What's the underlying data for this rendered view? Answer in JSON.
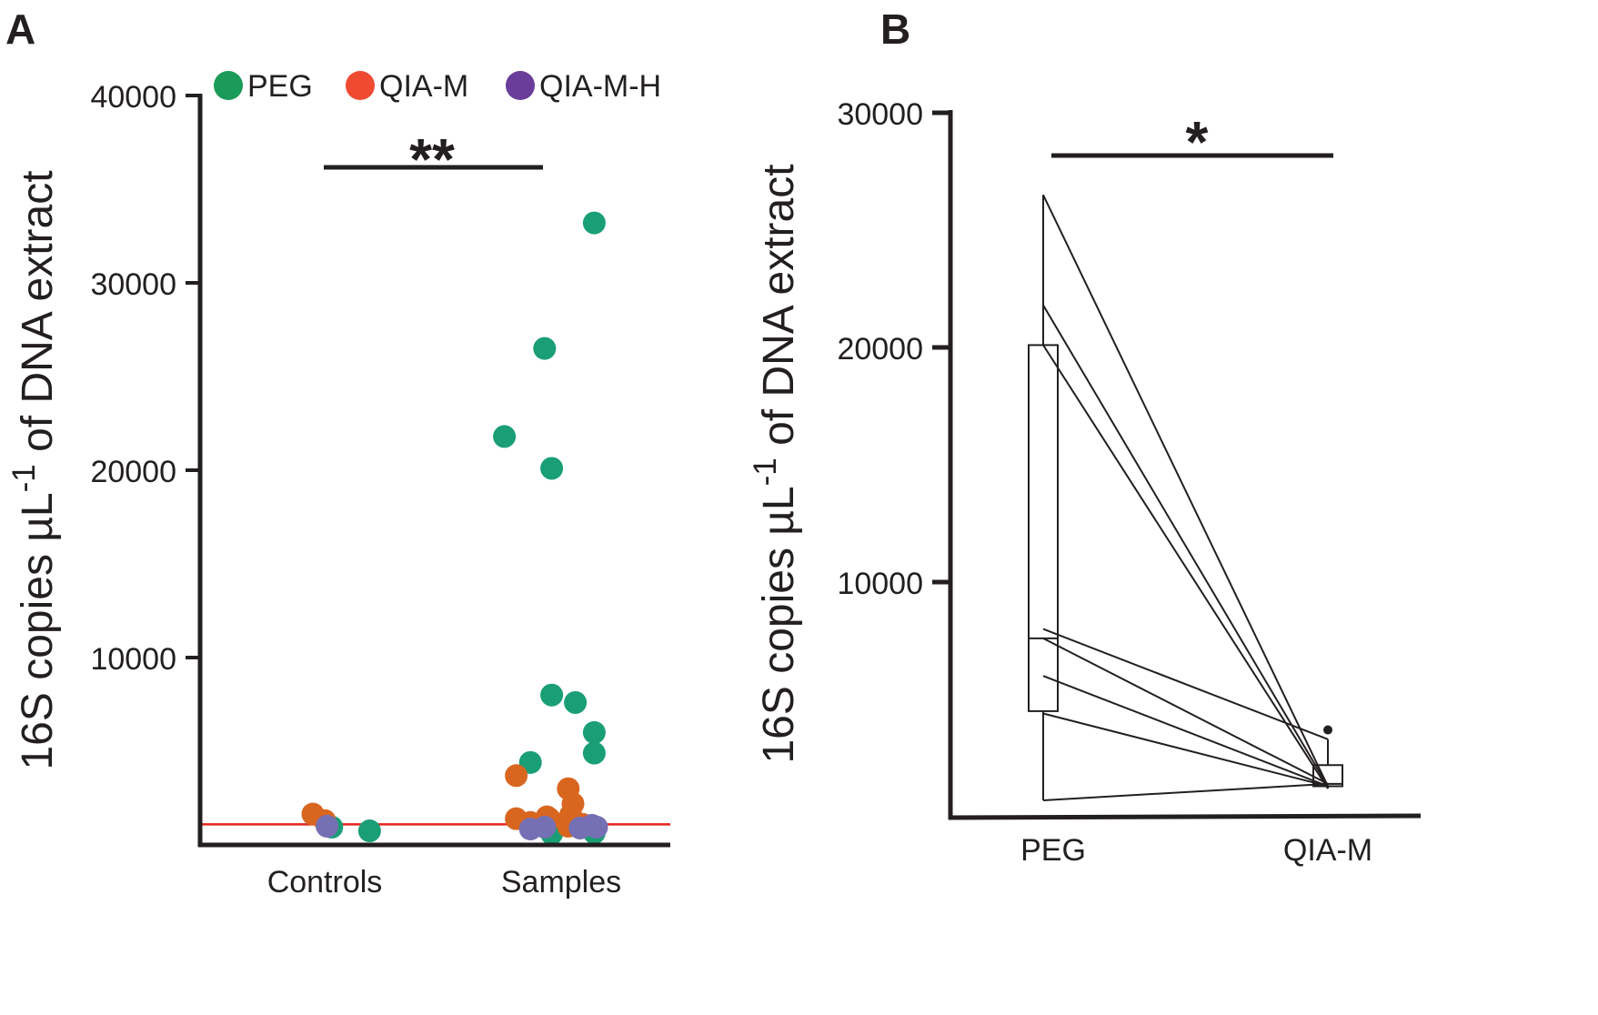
{
  "colors": {
    "PEG": "#1a9e76",
    "QIA-M": "#d9661f",
    "QIA-M-H": "#7570b3",
    "legend_PEG": "#1a9b58",
    "legend_QIA-M": "#ef4a32",
    "legend_QIA-M-H": "#6a3d9a",
    "threshold_line": "#e3241b",
    "axis": "#231f20"
  },
  "chart_data": [
    {
      "panel": "A",
      "type": "scatter",
      "title": "",
      "xlabel": "",
      "ylabel": "16S copies µL-1 of DNA extract",
      "ylabel_parts": {
        "main": "16S copies µL",
        "sup": "-1",
        "rest": " of DNA extract"
      },
      "categories": [
        "Controls",
        "Samples"
      ],
      "ylim": [
        0,
        40000
      ],
      "yticks": [
        10000,
        20000,
        30000,
        40000
      ],
      "threshold": 1100,
      "significance": "**",
      "significance_span": [
        "Controls",
        "Samples"
      ],
      "legend": {
        "position": "top",
        "entries": [
          "PEG",
          "QIA-M",
          "QIA-M-H"
        ]
      },
      "series": [
        {
          "name": "PEG",
          "points": [
            {
              "category": "Controls",
              "jitter": 0.03,
              "y": 950
            },
            {
              "category": "Controls",
              "jitter": 0.19,
              "y": 750
            },
            {
              "category": "Samples",
              "jitter": -0.24,
              "y": 21800
            },
            {
              "category": "Samples",
              "jitter": -0.07,
              "y": 26500
            },
            {
              "category": "Samples",
              "jitter": -0.04,
              "y": 20100
            },
            {
              "category": "Samples",
              "jitter": 0.14,
              "y": 33200
            },
            {
              "category": "Samples",
              "jitter": -0.13,
              "y": 4400
            },
            {
              "category": "Samples",
              "jitter": -0.04,
              "y": 8000
            },
            {
              "category": "Samples",
              "jitter": 0.06,
              "y": 7600
            },
            {
              "category": "Samples",
              "jitter": 0.14,
              "y": 6000
            },
            {
              "category": "Samples",
              "jitter": 0.14,
              "y": 4900
            },
            {
              "category": "Samples",
              "jitter": -0.04,
              "y": 600
            },
            {
              "category": "Samples",
              "jitter": 0.14,
              "y": 650
            }
          ]
        },
        {
          "name": "QIA-M",
          "points": [
            {
              "category": "Controls",
              "jitter": -0.05,
              "y": 1650
            },
            {
              "category": "Controls",
              "jitter": 0.0,
              "y": 1300
            },
            {
              "category": "Samples",
              "jitter": -0.19,
              "y": 3700
            },
            {
              "category": "Samples",
              "jitter": -0.19,
              "y": 1400
            },
            {
              "category": "Samples",
              "jitter": -0.13,
              "y": 1200
            },
            {
              "category": "Samples",
              "jitter": -0.06,
              "y": 1500
            },
            {
              "category": "Samples",
              "jitter": -0.05,
              "y": 1400
            },
            {
              "category": "Samples",
              "jitter": 0.03,
              "y": 3000
            },
            {
              "category": "Samples",
              "jitter": 0.05,
              "y": 2200
            },
            {
              "category": "Samples",
              "jitter": 0.04,
              "y": 1600
            },
            {
              "category": "Samples",
              "jitter": 0.03,
              "y": 1000
            },
            {
              "category": "Samples",
              "jitter": 0.09,
              "y": 1100
            }
          ]
        },
        {
          "name": "QIA-M-H",
          "points": [
            {
              "category": "Controls",
              "jitter": 0.01,
              "y": 1000
            },
            {
              "category": "Samples",
              "jitter": -0.13,
              "y": 850
            },
            {
              "category": "Samples",
              "jitter": -0.07,
              "y": 950
            },
            {
              "category": "Samples",
              "jitter": 0.08,
              "y": 900
            },
            {
              "category": "Samples",
              "jitter": 0.13,
              "y": 1050
            },
            {
              "category": "Samples",
              "jitter": 0.15,
              "y": 950
            }
          ]
        }
      ]
    },
    {
      "panel": "B",
      "type": "box",
      "title": "",
      "xlabel": "",
      "ylabel": "16S copies µL-1 of DNA extract",
      "ylabel_parts": {
        "main": "16S copies µL",
        "sup": "-1",
        "rest": " of DNA extract"
      },
      "categories": [
        "PEG",
        "QIA-M"
      ],
      "ylim": [
        0,
        30000
      ],
      "yticks": [
        10000,
        20000,
        30000
      ],
      "significance": "*",
      "boxes": [
        {
          "category": "PEG",
          "q1": 4500,
          "median": 7600,
          "q3": 20100,
          "whisker_low": 700,
          "whisker_high": 26500,
          "outliers": []
        },
        {
          "category": "QIA-M",
          "q1": 1300,
          "median": 1400,
          "q3": 2200,
          "whisker_low": 1200,
          "whisker_high": 3300,
          "outliers": [
            3700
          ]
        }
      ],
      "pairs": [
        {
          "PEG": 26500,
          "QIA-M": 1300
        },
        {
          "PEG": 21800,
          "QIA-M": 1300
        },
        {
          "PEG": 20100,
          "QIA-M": 1200
        },
        {
          "PEG": 8000,
          "QIA-M": 3300
        },
        {
          "PEG": 7600,
          "QIA-M": 1400
        },
        {
          "PEG": 6000,
          "QIA-M": 1300
        },
        {
          "PEG": 4400,
          "QIA-M": 1300
        },
        {
          "PEG": 700,
          "QIA-M": 1400
        }
      ]
    }
  ]
}
